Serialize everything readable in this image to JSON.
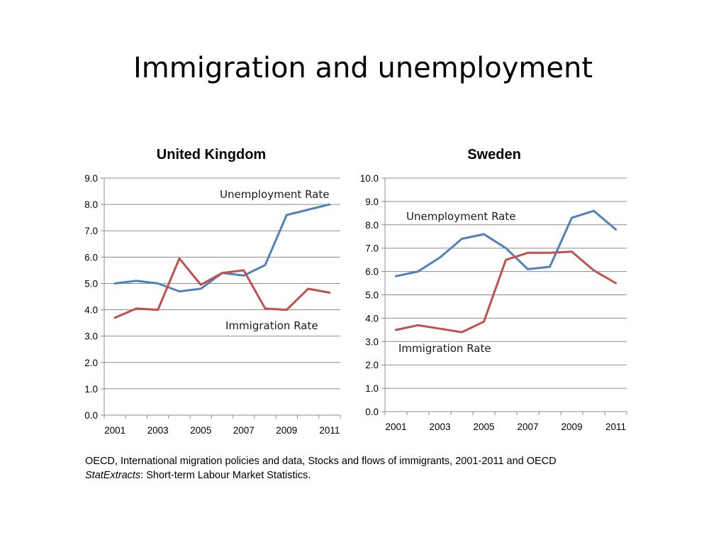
{
  "slide": {
    "title": "Immigration and unemployment",
    "source_line1": "OECD, International migration policies and data, Stocks and flows of immigrants, 2001-2011 and OECD",
    "source_italic": "StatExtracts",
    "source_rest": ": Short-term Labour Market Statistics."
  },
  "colors": {
    "unemployment": "#4f81bd",
    "immigration": "#c0504d",
    "grid": "#8c8c8c"
  },
  "chart_data": [
    {
      "type": "line",
      "title": "United Kingdom",
      "x": [
        2001,
        2002,
        2003,
        2004,
        2005,
        2006,
        2007,
        2008,
        2009,
        2010,
        2011
      ],
      "xticks": [
        "2001",
        "2003",
        "2005",
        "2007",
        "2009",
        "2011"
      ],
      "ylim": [
        0,
        9
      ],
      "yticks": [
        "0.0",
        "1.0",
        "2.0",
        "3.0",
        "4.0",
        "5.0",
        "6.0",
        "7.0",
        "8.0",
        "9.0"
      ],
      "grid": true,
      "series": [
        {
          "name": "Unemployment Rate",
          "values": [
            5.0,
            5.1,
            5.0,
            4.7,
            4.8,
            5.4,
            5.3,
            5.7,
            7.6,
            7.8,
            8.0
          ]
        },
        {
          "name": "Immigration Rate",
          "values": [
            3.7,
            4.05,
            4.0,
            5.95,
            4.95,
            5.4,
            5.5,
            4.05,
            4.0,
            4.8,
            4.65
          ]
        }
      ]
    },
    {
      "type": "line",
      "title": "Sweden",
      "x": [
        2001,
        2002,
        2003,
        2004,
        2005,
        2006,
        2007,
        2008,
        2009,
        2010,
        2011
      ],
      "xticks": [
        "2001",
        "2003",
        "2005",
        "2007",
        "2009",
        "2011"
      ],
      "ylim": [
        0,
        10
      ],
      "yticks": [
        "0.0",
        "1.0",
        "2.0",
        "3.0",
        "4.0",
        "5.0",
        "6.0",
        "7.0",
        "8.0",
        "9.0",
        "10.0"
      ],
      "grid": true,
      "series": [
        {
          "name": "Unemployment Rate",
          "values": [
            5.8,
            6.0,
            6.6,
            7.4,
            7.6,
            7.0,
            6.1,
            6.2,
            8.3,
            8.6,
            7.8
          ]
        },
        {
          "name": "Immigration Rate",
          "values": [
            3.5,
            3.7,
            3.55,
            3.4,
            3.85,
            6.5,
            6.8,
            6.8,
            6.85,
            6.05,
            5.5
          ]
        }
      ]
    }
  ]
}
